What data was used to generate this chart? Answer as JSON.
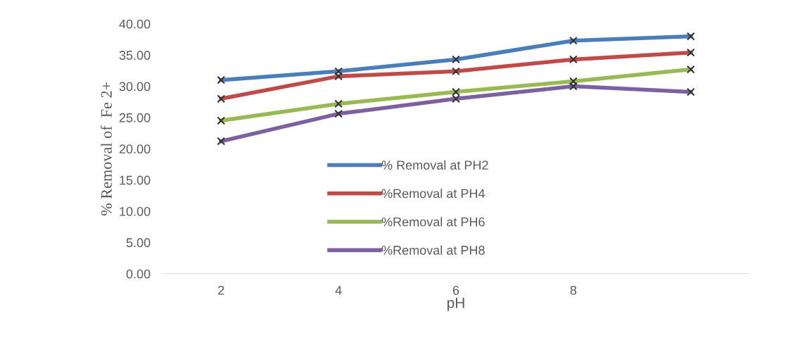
{
  "chart_data": {
    "type": "line",
    "xlabel": "pH",
    "ylabel": "% Removal of  Fe 2+",
    "categories": [
      "2",
      "4",
      "6",
      "8",
      null
    ],
    "ylim": [
      0,
      40
    ],
    "yticks": [
      {
        "value": 0,
        "label": "0.00"
      },
      {
        "value": 5,
        "label": "5.00"
      },
      {
        "value": 10,
        "label": "10.00"
      },
      {
        "value": 15,
        "label": "15.00"
      },
      {
        "value": 20,
        "label": "20.00"
      },
      {
        "value": 25,
        "label": "25.00"
      },
      {
        "value": 30,
        "label": "30.00"
      },
      {
        "value": 35,
        "label": "35.00"
      },
      {
        "value": 40,
        "label": "40.00"
      }
    ],
    "grid": false,
    "legend": "bottom",
    "marker": "cross",
    "line_style": "solid",
    "series": [
      {
        "name": "% Removal at PH2",
        "color": "#4a7ebb",
        "values": [
          31.0,
          32.4,
          34.3,
          37.3,
          38.0
        ]
      },
      {
        "name": "%Removal at PH4",
        "color": "#be4b48",
        "values": [
          28.0,
          31.6,
          32.4,
          34.3,
          35.4
        ]
      },
      {
        "name": "%Removal at PH6",
        "color": "#98b954",
        "values": [
          24.5,
          27.2,
          29.1,
          30.8,
          32.7
        ]
      },
      {
        "name": "%Removal at PH8",
        "color": "#7d60a0",
        "values": [
          21.2,
          25.6,
          28.0,
          30.0,
          29.1
        ]
      }
    ]
  }
}
